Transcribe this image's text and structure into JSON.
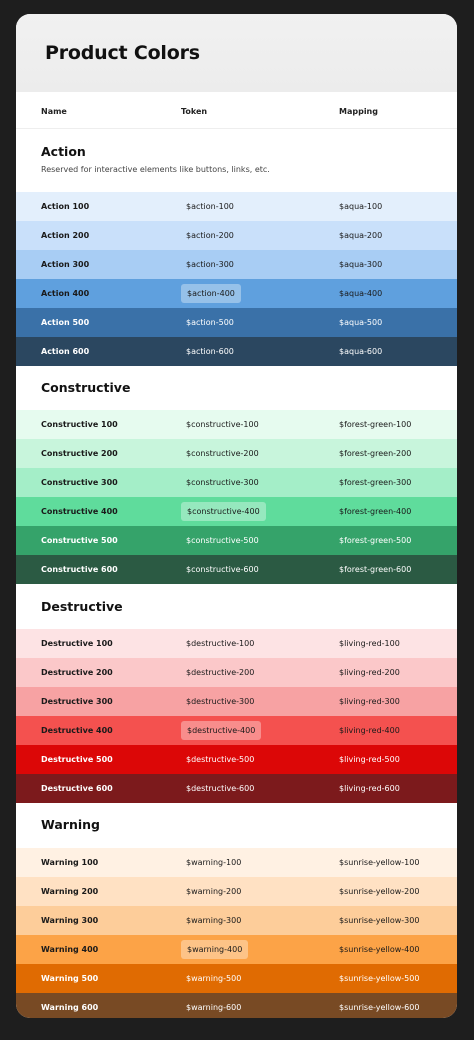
{
  "title": "Product Colors",
  "columns": {
    "name": "Name",
    "token": "Token",
    "mapping": "Mapping"
  },
  "groups": [
    {
      "title": "Action",
      "description": "Reserved for interactive elements like buttons, links, etc.",
      "rows": [
        {
          "name": "Action 100",
          "token": "$action-100",
          "mapping": "$aqua-100",
          "color": "#e3effc",
          "text": "#1a1a1a"
        },
        {
          "name": "Action 200",
          "token": "$action-200",
          "mapping": "$aqua-200",
          "color": "#c9e0fa",
          "text": "#1a1a1a"
        },
        {
          "name": "Action 300",
          "token": "$action-300",
          "mapping": "$aqua-300",
          "color": "#a8cdf4",
          "text": "#1a1a1a"
        },
        {
          "name": "Action 400",
          "token": "$action-400",
          "mapping": "$aqua-400",
          "color": "#5fa0de",
          "text": "#1a1a1a"
        },
        {
          "name": "Action 500",
          "token": "$action-500",
          "mapping": "$aqua-500",
          "color": "#3a71a8",
          "text": "#ffffff"
        },
        {
          "name": "Action 600",
          "token": "$action-600",
          "mapping": "$aqua-600",
          "color": "#2b4760",
          "text": "#ffffff"
        }
      ]
    },
    {
      "title": "Constructive",
      "description": "",
      "rows": [
        {
          "name": "Constructive 100",
          "token": "$constructive-100",
          "mapping": "$forest-green-100",
          "color": "#e6fbef",
          "text": "#1a1a1a"
        },
        {
          "name": "Constructive 200",
          "token": "$constructive-200",
          "mapping": "$forest-green-200",
          "color": "#c8f5dc",
          "text": "#1a1a1a"
        },
        {
          "name": "Constructive 300",
          "token": "$constructive-300",
          "mapping": "$forest-green-300",
          "color": "#a4eec8",
          "text": "#1a1a1a"
        },
        {
          "name": "Constructive 400",
          "token": "$constructive-400",
          "mapping": "$forest-green-400",
          "color": "#5fdc9c",
          "text": "#1a1a1a"
        },
        {
          "name": "Constructive 500",
          "token": "$constructive-500",
          "mapping": "$forest-green-500",
          "color": "#35a36a",
          "text": "#ffffff"
        },
        {
          "name": "Constructive 600",
          "token": "$constructive-600",
          "mapping": "$forest-green-600",
          "color": "#2b5a43",
          "text": "#ffffff"
        }
      ]
    },
    {
      "title": "Destructive",
      "description": "",
      "rows": [
        {
          "name": "Destructive 100",
          "token": "$destructive-100",
          "mapping": "$living-red-100",
          "color": "#fde3e4",
          "text": "#1a1a1a"
        },
        {
          "name": "Destructive 200",
          "token": "$destructive-200",
          "mapping": "$living-red-200",
          "color": "#fbc8c9",
          "text": "#1a1a1a"
        },
        {
          "name": "Destructive 300",
          "token": "$destructive-300",
          "mapping": "$living-red-300",
          "color": "#f7a2a3",
          "text": "#1a1a1a"
        },
        {
          "name": "Destructive 400",
          "token": "$destructive-400",
          "mapping": "$living-red-400",
          "color": "#f4514f",
          "text": "#1a1a1a"
        },
        {
          "name": "Destructive 500",
          "token": "$destructive-500",
          "mapping": "$living-red-500",
          "color": "#dc0707",
          "text": "#ffffff"
        },
        {
          "name": "Destructive 600",
          "token": "$destructive-600",
          "mapping": "$living-red-600",
          "color": "#7c1a1c",
          "text": "#ffffff"
        }
      ]
    },
    {
      "title": "Warning",
      "description": "",
      "rows": [
        {
          "name": "Warning 100",
          "token": "$warning-100",
          "mapping": "$sunrise-yellow-100",
          "color": "#fff1e3",
          "text": "#1a1a1a"
        },
        {
          "name": "Warning 200",
          "token": "$warning-200",
          "mapping": "$sunrise-yellow-200",
          "color": "#ffe1c3",
          "text": "#1a1a1a"
        },
        {
          "name": "Warning 300",
          "token": "$warning-300",
          "mapping": "$sunrise-yellow-300",
          "color": "#fdcd9a",
          "text": "#1a1a1a"
        },
        {
          "name": "Warning 400",
          "token": "$warning-400",
          "mapping": "$sunrise-yellow-400",
          "color": "#fca347",
          "text": "#1a1a1a"
        },
        {
          "name": "Warning 500",
          "token": "$warning-500",
          "mapping": "$sunrise-yellow-500",
          "color": "#e06b02",
          "text": "#ffffff"
        },
        {
          "name": "Warning 600",
          "token": "$warning-600",
          "mapping": "$sunrise-yellow-600",
          "color": "#784a24",
          "text": "#ffffff"
        }
      ]
    }
  ],
  "highlighted_row_index": 3
}
